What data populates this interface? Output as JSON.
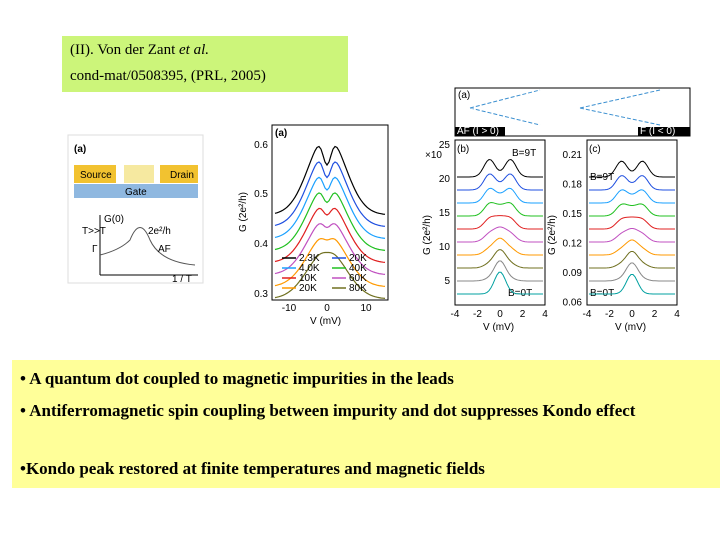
{
  "header": {
    "title_main": "(II). Von der Zant ",
    "title_italic": "et al.",
    "reference": "cond-mat/0508395, (PRL, 2005)"
  },
  "schematic": {
    "panel": "(a)",
    "source": "Source",
    "drain": "Drain",
    "gate": "Gate",
    "g0": "G(0)",
    "high_t": "T>>T",
    "gamma": "Γ",
    "peak": "2e²/h",
    "af": "AF",
    "axis": "1 / T"
  },
  "plot_middle": {
    "panel": "(a)",
    "ylabel": "G (2e²/h)",
    "xlabel": "V",
    "xlabel_unit": " (mV)",
    "yticks": [
      "0.6",
      "0.5",
      "0.4",
      "0.3"
    ],
    "xticks": [
      "-10",
      "0",
      "10"
    ],
    "legend": [
      "2.3K",
      "20K",
      "4.0K",
      "40K",
      "10K",
      "60K",
      "20K",
      "80K"
    ]
  },
  "plot_right": {
    "strip_label": "(a)",
    "af_label": "AF (I > 0)",
    "f_label": "F (I < 0)",
    "panel_b": "(b)",
    "panel_c": "(c)",
    "field_high": "B=9T",
    "field_zero": "B=0T",
    "ylabel_b": "G (2e²/h)",
    "ylabel_c": "G (2e²/h)",
    "scale_b": "×10",
    "b_yticks": [
      "25",
      "20",
      "15",
      "10",
      "5"
    ],
    "c_yticks": [
      "0.21",
      "0.18",
      "0.15",
      "0.12",
      "0.09",
      "0.06"
    ],
    "xticks": [
      "-4",
      "-2",
      "0",
      "2",
      "4"
    ],
    "xlabel": "V",
    "xlabel_unit": " (mV)"
  },
  "bullets": [
    "• A quantum dot coupled to magnetic impurities in the leads",
    "• Antiferromagnetic spin coupling between impurity and dot suppresses Kondo effect",
    "•Kondo peak restored at finite temperatures and magnetic fields"
  ]
}
